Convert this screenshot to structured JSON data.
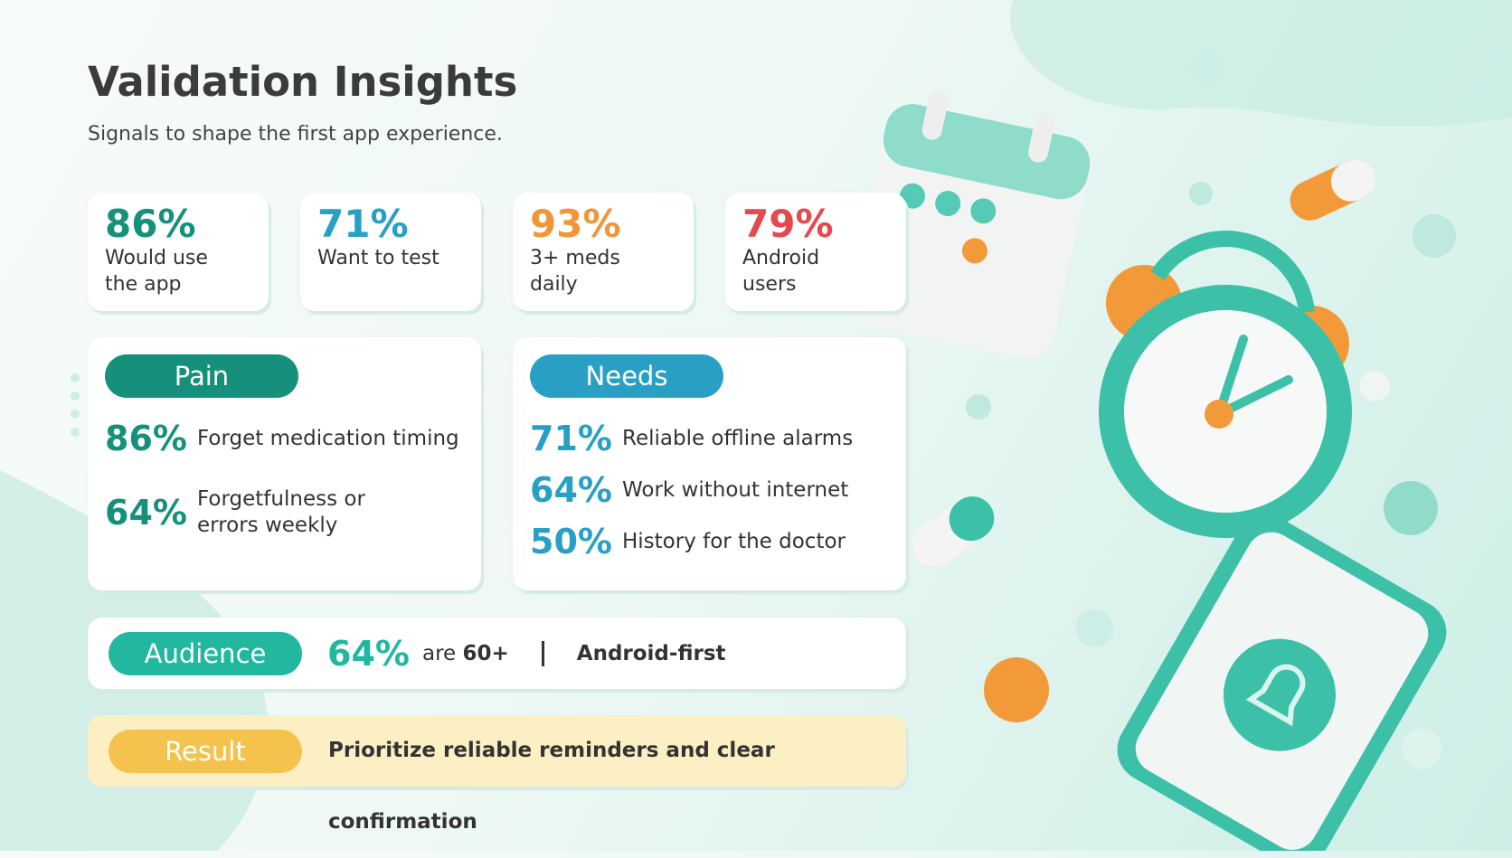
{
  "header": {
    "title": "Validation Insights",
    "subtitle": "Signals to shape the first app experience."
  },
  "stats": [
    {
      "value": "86%",
      "label_lines": [
        "Would use",
        "the app"
      ]
    },
    {
      "value": "71%",
      "label_lines": [
        "Want to test"
      ]
    },
    {
      "value": "93%",
      "label_lines": [
        "3+ meds",
        "daily"
      ]
    },
    {
      "value": "79%",
      "label_lines": [
        "Android",
        "users"
      ]
    }
  ],
  "pain": {
    "tag": "Pain",
    "items": [
      {
        "value": "86%",
        "text": "Forget medication timing"
      },
      {
        "value": "64%",
        "text": "Forgetfulness or errors weekly"
      }
    ]
  },
  "needs": {
    "tag": "Needs",
    "items": [
      {
        "value": "71%",
        "text": "Reliable offline alarms"
      },
      {
        "value": "64%",
        "text": "Work without internet"
      },
      {
        "value": "50%",
        "text": "History for the doctor"
      }
    ]
  },
  "audience": {
    "tag": "Audience",
    "value": "64%",
    "text": "are",
    "emphasis": "60+",
    "platform": "Android-first"
  },
  "result": {
    "tag": "Result",
    "text": "Prioritize reliable reminders and clear confirmation"
  }
}
